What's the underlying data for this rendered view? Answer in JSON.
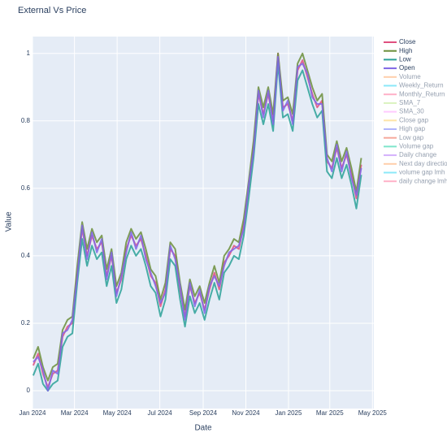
{
  "chart_data": {
    "type": "line",
    "title": "External Vs Price",
    "x_label": "Date",
    "y_label": "Value",
    "x": [
      "2024-01-02",
      "2024-01-09",
      "2024-01-16",
      "2024-01-23",
      "2024-01-30",
      "2024-02-06",
      "2024-02-13",
      "2024-02-20",
      "2024-02-27",
      "2024-03-05",
      "2024-03-12",
      "2024-03-19",
      "2024-03-26",
      "2024-04-02",
      "2024-04-09",
      "2024-04-16",
      "2024-04-23",
      "2024-04-30",
      "2024-05-07",
      "2024-05-14",
      "2024-05-21",
      "2024-05-28",
      "2024-06-04",
      "2024-06-11",
      "2024-06-18",
      "2024-06-25",
      "2024-07-02",
      "2024-07-09",
      "2024-07-16",
      "2024-07-23",
      "2024-07-30",
      "2024-08-06",
      "2024-08-13",
      "2024-08-20",
      "2024-08-27",
      "2024-09-03",
      "2024-09-10",
      "2024-09-17",
      "2024-09-24",
      "2024-10-01",
      "2024-10-08",
      "2024-10-15",
      "2024-10-22",
      "2024-10-29",
      "2024-11-05",
      "2024-11-12",
      "2024-11-19",
      "2024-11-26",
      "2024-12-03",
      "2024-12-10",
      "2024-12-17",
      "2024-12-24",
      "2024-12-31",
      "2025-01-07",
      "2025-01-14",
      "2025-01-21",
      "2025-01-28",
      "2025-02-04",
      "2025-02-11",
      "2025-02-18",
      "2025-02-25",
      "2025-03-04",
      "2025-03-11",
      "2025-03-18",
      "2025-03-25",
      "2025-04-01",
      "2025-04-08",
      "2025-04-15"
    ],
    "series": [
      {
        "name": "Close",
        "color": "#e0507f",
        "visible": true,
        "values": [
          0.075,
          0.11,
          0.05,
          0.01,
          0.05,
          0.06,
          0.16,
          0.19,
          0.2,
          0.35,
          0.48,
          0.4,
          0.46,
          0.42,
          0.44,
          0.34,
          0.4,
          0.29,
          0.33,
          0.42,
          0.46,
          0.43,
          0.45,
          0.4,
          0.34,
          0.32,
          0.25,
          0.3,
          0.42,
          0.4,
          0.3,
          0.22,
          0.31,
          0.26,
          0.29,
          0.24,
          0.3,
          0.35,
          0.3,
          0.38,
          0.4,
          0.43,
          0.42,
          0.49,
          0.6,
          0.72,
          0.88,
          0.82,
          0.88,
          0.8,
          1,
          0.84,
          0.85,
          0.8,
          0.95,
          0.98,
          0.93,
          0.88,
          0.84,
          0.86,
          0.68,
          0.66,
          0.72,
          0.66,
          0.7,
          0.64,
          0.57,
          0.67
        ]
      },
      {
        "name": "High",
        "color": "#6b8e3a",
        "visible": true,
        "values": [
          0.095,
          0.13,
          0.07,
          0.03,
          0.07,
          0.08,
          0.18,
          0.21,
          0.22,
          0.37,
          0.5,
          0.42,
          0.48,
          0.44,
          0.46,
          0.36,
          0.42,
          0.31,
          0.35,
          0.44,
          0.48,
          0.45,
          0.47,
          0.42,
          0.36,
          0.34,
          0.27,
          0.32,
          0.44,
          0.42,
          0.32,
          0.24,
          0.33,
          0.28,
          0.31,
          0.26,
          0.32,
          0.37,
          0.32,
          0.4,
          0.42,
          0.45,
          0.44,
          0.51,
          0.62,
          0.74,
          0.9,
          0.84,
          0.9,
          0.82,
          1,
          0.86,
          0.87,
          0.82,
          0.97,
          1,
          0.95,
          0.9,
          0.86,
          0.88,
          0.7,
          0.68,
          0.74,
          0.68,
          0.72,
          0.66,
          0.59,
          0.69
        ]
      },
      {
        "name": "Low",
        "color": "#2aa198",
        "visible": true,
        "values": [
          0.045,
          0.08,
          0.02,
          0,
          0.02,
          0.03,
          0.13,
          0.16,
          0.17,
          0.32,
          0.45,
          0.37,
          0.43,
          0.39,
          0.41,
          0.31,
          0.37,
          0.26,
          0.3,
          0.39,
          0.43,
          0.4,
          0.42,
          0.37,
          0.31,
          0.29,
          0.22,
          0.27,
          0.39,
          0.37,
          0.27,
          0.19,
          0.28,
          0.23,
          0.26,
          0.21,
          0.27,
          0.32,
          0.27,
          0.35,
          0.37,
          0.4,
          0.39,
          0.46,
          0.57,
          0.69,
          0.85,
          0.79,
          0.85,
          0.77,
          0.97,
          0.81,
          0.82,
          0.77,
          0.92,
          0.95,
          0.9,
          0.85,
          0.81,
          0.83,
          0.65,
          0.63,
          0.69,
          0.63,
          0.67,
          0.61,
          0.54,
          0.64
        ]
      },
      {
        "name": "Open",
        "color": "#8066e6",
        "visible": true,
        "values": [
          0.085,
          0.1,
          0.06,
          0,
          0.06,
          0.05,
          0.17,
          0.18,
          0.21,
          0.34,
          0.49,
          0.39,
          0.47,
          0.41,
          0.45,
          0.33,
          0.41,
          0.28,
          0.34,
          0.41,
          0.47,
          0.42,
          0.46,
          0.39,
          0.35,
          0.31,
          0.26,
          0.29,
          0.43,
          0.39,
          0.31,
          0.21,
          0.32,
          0.25,
          0.3,
          0.23,
          0.31,
          0.34,
          0.31,
          0.37,
          0.41,
          0.42,
          0.43,
          0.48,
          0.61,
          0.71,
          0.89,
          0.81,
          0.89,
          0.79,
          0.99,
          0.83,
          0.86,
          0.79,
          0.96,
          0.97,
          0.94,
          0.87,
          0.85,
          0.85,
          0.69,
          0.65,
          0.73,
          0.65,
          0.71,
          0.63,
          0.58,
          0.66
        ]
      },
      {
        "name": "Volume",
        "color": "#FFA15A",
        "visible": false
      },
      {
        "name": "Weekly_Return",
        "color": "#19d3f3",
        "visible": false
      },
      {
        "name": "Monthly_Return",
        "color": "#FF6692",
        "visible": false
      },
      {
        "name": "SMA_7",
        "color": "#B6E880",
        "visible": false
      },
      {
        "name": "SMA_30",
        "color": "#FF97FF",
        "visible": false
      },
      {
        "name": "Close gap",
        "color": "#FECB52",
        "visible": false
      },
      {
        "name": "High gap",
        "color": "#636efa",
        "visible": false
      },
      {
        "name": "Low gap",
        "color": "#EF553B",
        "visible": false
      },
      {
        "name": "Volume gap",
        "color": "#00cc96",
        "visible": false
      },
      {
        "name": "Daily change",
        "color": "#ab63fa",
        "visible": false
      },
      {
        "name": "Next day direction",
        "color": "#FFA15A",
        "visible": false
      },
      {
        "name": "volume gap lmh",
        "color": "#19d3f3",
        "visible": false
      },
      {
        "name": "daily change lmh",
        "color": "#FF6692",
        "visible": false
      }
    ],
    "xlim": [
      "2024-01-01",
      "2025-05-03"
    ],
    "xticks": [
      {
        "value": "2024-01-01",
        "label": "Jan 2024"
      },
      {
        "value": "2024-03-01",
        "label": "Mar 2024"
      },
      {
        "value": "2024-05-01",
        "label": "May 2024"
      },
      {
        "value": "2024-07-01",
        "label": "Jul 2024"
      },
      {
        "value": "2024-09-01",
        "label": "Sep 2024"
      },
      {
        "value": "2024-11-01",
        "label": "Nov 2024"
      },
      {
        "value": "2025-01-01",
        "label": "Jan 2025"
      },
      {
        "value": "2025-03-01",
        "label": "Mar 2025"
      },
      {
        "value": "2025-05-01",
        "label": "May 2025"
      }
    ],
    "ylim": [
      -0.053,
      1.05
    ],
    "yticks": [
      0,
      0.2,
      0.4,
      0.6,
      0.8,
      1
    ],
    "grid": true,
    "legend": "right"
  }
}
